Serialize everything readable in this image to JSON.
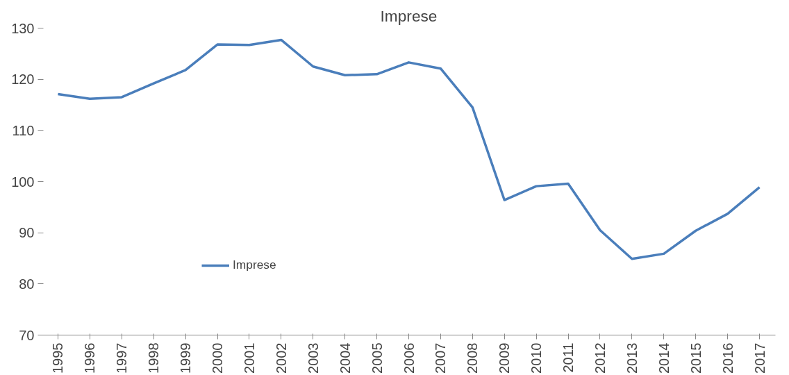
{
  "chart_data": {
    "type": "line",
    "title": "Imprese",
    "categories": [
      "1995",
      "1996",
      "1997",
      "1998",
      "1999",
      "2000",
      "2001",
      "2002",
      "2003",
      "2004",
      "2005",
      "2006",
      "2007",
      "2008",
      "2009",
      "2010",
      "2011",
      "2012",
      "2013",
      "2014",
      "2015",
      "2016",
      "2017"
    ],
    "series": [
      {
        "name": "Imprese",
        "color": "#4a7ebb",
        "values": [
          117.1,
          116.2,
          116.5,
          119.2,
          121.8,
          126.8,
          126.7,
          127.7,
          122.5,
          120.8,
          121.0,
          123.3,
          122.1,
          114.5,
          96.4,
          99.1,
          99.6,
          90.5,
          84.9,
          85.9,
          90.4,
          93.7,
          98.9
        ]
      }
    ],
    "ylim": [
      70,
      130
    ],
    "yticks": [
      70,
      80,
      90,
      100,
      110,
      120,
      130
    ],
    "grid": false,
    "legend": "left",
    "marker": "none",
    "line_style": "solid"
  }
}
